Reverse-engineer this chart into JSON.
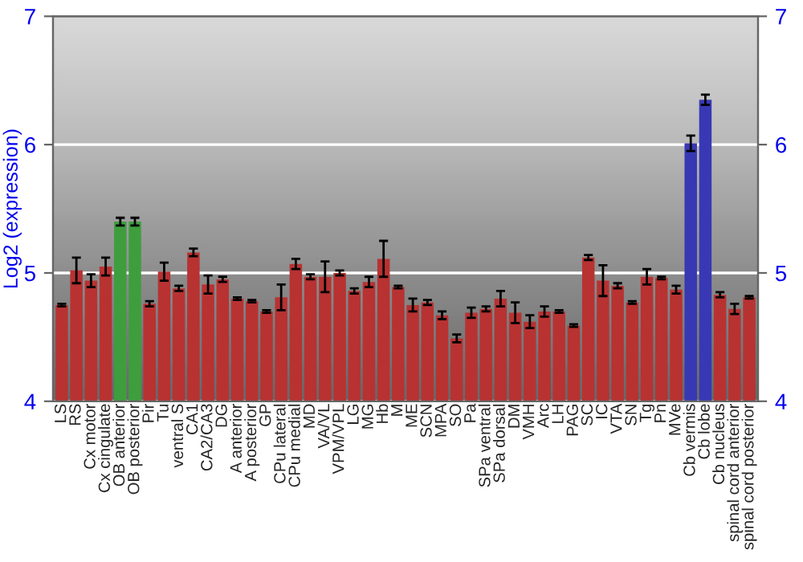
{
  "chart_data": {
    "type": "bar",
    "ylabel": "Log2 (expression)",
    "categories": [
      "LS",
      "RS",
      "Cx motor",
      "Cx cingulate",
      "OB anterior",
      "OB posterior",
      "Pir",
      "Tu",
      "ventral S",
      "CA1",
      "CA2/CA3",
      "DG",
      "A anterior",
      "A posterior",
      "GP",
      "CPu lateral",
      "CPu medial",
      "MD",
      "VA/VL",
      "VPM/VPL",
      "LG",
      "MG",
      "Hb",
      "M",
      "ME",
      "SCN",
      "MPA",
      "SO",
      "Pa",
      "SPa ventral",
      "SPa dorsal",
      "DM",
      "VMH",
      "Arc",
      "LH",
      "PAG",
      "SC",
      "IC",
      "VTA",
      "SN",
      "Tg",
      "Pn",
      "MVe",
      "Cb vermis",
      "Cb lobe",
      "Cb nucleus",
      "spinal cord anterior",
      "spinal cord posterior"
    ],
    "values": [
      4.75,
      5.02,
      4.94,
      5.05,
      5.4,
      5.4,
      4.76,
      5.01,
      4.88,
      5.16,
      4.91,
      4.95,
      4.8,
      4.78,
      4.7,
      4.81,
      5.07,
      4.97,
      4.97,
      5.0,
      4.86,
      4.93,
      5.11,
      4.89,
      4.75,
      4.77,
      4.67,
      4.49,
      4.69,
      4.72,
      4.8,
      4.69,
      4.62,
      4.7,
      4.7,
      4.59,
      5.12,
      4.94,
      4.9,
      4.77,
      4.97,
      4.96,
      4.87,
      6.01,
      6.35,
      4.83,
      4.72,
      4.81
    ],
    "errors": [
      0.01,
      0.1,
      0.05,
      0.07,
      0.03,
      0.03,
      0.02,
      0.07,
      0.02,
      0.03,
      0.07,
      0.02,
      0.01,
      0.01,
      0.01,
      0.1,
      0.04,
      0.02,
      0.12,
      0.02,
      0.02,
      0.04,
      0.14,
      0.01,
      0.05,
      0.02,
      0.03,
      0.03,
      0.04,
      0.02,
      0.06,
      0.08,
      0.05,
      0.04,
      0.01,
      0.01,
      0.02,
      0.12,
      0.02,
      0.01,
      0.06,
      0.01,
      0.03,
      0.06,
      0.04,
      0.02,
      0.04,
      0.01
    ],
    "colors": [
      "#b83232",
      "#b83232",
      "#b83232",
      "#b83232",
      "#3e9e3e",
      "#3e9e3e",
      "#b83232",
      "#b83232",
      "#b83232",
      "#b83232",
      "#b83232",
      "#b83232",
      "#b83232",
      "#b83232",
      "#b83232",
      "#b83232",
      "#b83232",
      "#b83232",
      "#b83232",
      "#b83232",
      "#b83232",
      "#b83232",
      "#b83232",
      "#b83232",
      "#b83232",
      "#b83232",
      "#b83232",
      "#b83232",
      "#b83232",
      "#b83232",
      "#b83232",
      "#b83232",
      "#b83232",
      "#b83232",
      "#b83232",
      "#b83232",
      "#b83232",
      "#b83232",
      "#b83232",
      "#b83232",
      "#b83232",
      "#b83232",
      "#b83232",
      "#3838b4",
      "#3838b4",
      "#b83232",
      "#b83232",
      "#b83232"
    ],
    "ylim": [
      4,
      7
    ],
    "yticks": [
      4,
      5,
      6,
      7
    ],
    "y2lim": [
      4,
      7
    ],
    "y2ticks": [
      4,
      5,
      6,
      7
    ],
    "grid": "y",
    "legend": false
  }
}
